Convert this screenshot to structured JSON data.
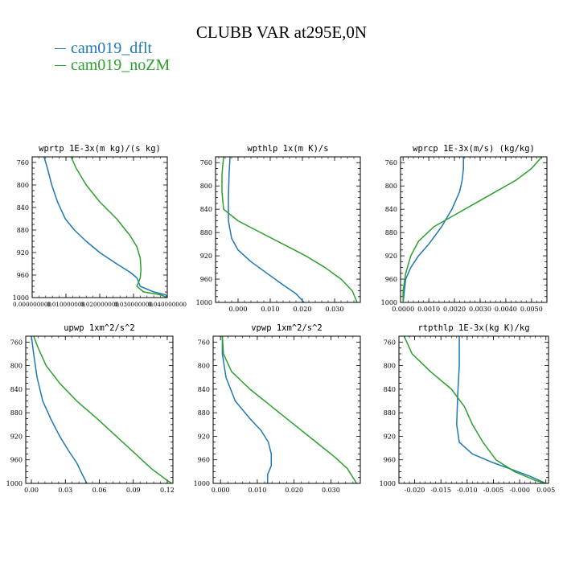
{
  "page": {
    "title": "CLUBB VAR at295E,0N",
    "legend": [
      {
        "label": "cam019_dflt",
        "color": "#1f77b4"
      },
      {
        "label": "cam019_noZM",
        "color": "#2ca02c"
      }
    ]
  },
  "chart_data": [
    {
      "type": "line",
      "title": "wprtp  1E-3x(m kg)/(s kg)",
      "xlim": [
        0.0,
        0.04
      ],
      "ylim": [
        1000,
        750
      ],
      "xticks": [
        0.0,
        0.01,
        0.02,
        0.03,
        0.04
      ],
      "xtick_labels": [
        "0.000000000",
        "0.010000000",
        "0.020000000",
        "0.030000000",
        "0.040000000"
      ],
      "yticks": [
        760,
        800,
        840,
        880,
        920,
        960,
        1000
      ],
      "series": [
        {
          "name": "cam019_dflt",
          "points": [
            [
              0.0035,
              750
            ],
            [
              0.0045,
              770
            ],
            [
              0.0058,
              800
            ],
            [
              0.0075,
              830
            ],
            [
              0.0098,
              860
            ],
            [
              0.0125,
              880
            ],
            [
              0.016,
              900
            ],
            [
              0.02,
              920
            ],
            [
              0.025,
              940
            ],
            [
              0.029,
              955
            ],
            [
              0.031,
              965
            ],
            [
              0.032,
              980
            ],
            [
              0.036,
              990
            ],
            [
              0.0395,
              995
            ],
            [
              0.04,
              1000
            ]
          ]
        },
        {
          "name": "cam019_noZM",
          "points": [
            [
              0.0115,
              750
            ],
            [
              0.013,
              770
            ],
            [
              0.016,
              800
            ],
            [
              0.02,
              830
            ],
            [
              0.025,
              860
            ],
            [
              0.029,
              890
            ],
            [
              0.031,
              910
            ],
            [
              0.032,
              930
            ],
            [
              0.0322,
              950
            ],
            [
              0.032,
              965
            ],
            [
              0.031,
              980
            ],
            [
              0.033,
              990
            ],
            [
              0.038,
              995
            ],
            [
              0.04,
              1000
            ]
          ]
        }
      ]
    },
    {
      "type": "line",
      "title": "wpthlp  1x(m K)/s",
      "xlim": [
        -0.007,
        0.038
      ],
      "ylim": [
        1000,
        750
      ],
      "xticks": [
        0.0,
        0.01,
        0.02,
        0.03
      ],
      "xtick_labels": [
        "0.000",
        "0.010",
        "0.020",
        "0.030"
      ],
      "yticks": [
        760,
        800,
        840,
        880,
        920,
        960,
        1000
      ],
      "series": [
        {
          "name": "cam019_dflt",
          "points": [
            [
              -0.0025,
              750
            ],
            [
              -0.0028,
              780
            ],
            [
              -0.003,
              820
            ],
            [
              -0.003,
              860
            ],
            [
              -0.002,
              890
            ],
            [
              0.0,
              910
            ],
            [
              0.004,
              930
            ],
            [
              0.009,
              950
            ],
            [
              0.014,
              970
            ],
            [
              0.018,
              985
            ],
            [
              0.0205,
              1000
            ]
          ]
        },
        {
          "name": "cam019_noZM",
          "points": [
            [
              -0.0045,
              750
            ],
            [
              -0.005,
              780
            ],
            [
              -0.005,
              810
            ],
            [
              -0.0045,
              840
            ],
            [
              0.0,
              860
            ],
            [
              0.007,
              880
            ],
            [
              0.014,
              900
            ],
            [
              0.021,
              920
            ],
            [
              0.027,
              940
            ],
            [
              0.032,
              960
            ],
            [
              0.0355,
              980
            ],
            [
              0.037,
              1000
            ]
          ]
        }
      ]
    },
    {
      "type": "line",
      "title": "wprcp  1E-3x(m/s) (kg/kg)",
      "xlim": [
        -0.0001,
        0.0056
      ],
      "ylim": [
        1000,
        750
      ],
      "xticks": [
        0.0,
        0.001,
        0.002,
        0.003,
        0.004,
        0.005
      ],
      "xtick_labels": [
        "0.0000",
        "0.0010",
        "0.0020",
        "0.0030",
        "0.0040",
        "0.0050"
      ],
      "yticks": [
        760,
        800,
        840,
        880,
        920,
        960,
        1000
      ],
      "series": [
        {
          "name": "cam019_dflt",
          "points": [
            [
              0.00235,
              750
            ],
            [
              0.00235,
              770
            ],
            [
              0.0023,
              790
            ],
            [
              0.0022,
              810
            ],
            [
              0.0019,
              840
            ],
            [
              0.0015,
              870
            ],
            [
              0.001,
              900
            ],
            [
              0.0006,
              920
            ],
            [
              0.0003,
              940
            ],
            [
              0.0001,
              960
            ],
            [
              5e-05,
              980
            ],
            [
              0.0,
              1000
            ]
          ]
        },
        {
          "name": "cam019_noZM",
          "points": [
            [
              0.0054,
              750
            ],
            [
              0.005,
              770
            ],
            [
              0.0044,
              790
            ],
            [
              0.0036,
              810
            ],
            [
              0.0028,
              830
            ],
            [
              0.002,
              850
            ],
            [
              0.0012,
              870
            ],
            [
              0.0006,
              895
            ],
            [
              0.0003,
              920
            ],
            [
              0.0001,
              950
            ],
            [
              0.0,
              980
            ],
            [
              0.0,
              1000
            ]
          ]
        }
      ]
    },
    {
      "type": "line",
      "title": "upwp  1xm^2/s^2",
      "xlim": [
        -0.005,
        0.125
      ],
      "ylim": [
        1000,
        750
      ],
      "xticks": [
        0.0,
        0.03,
        0.06,
        0.09,
        0.12
      ],
      "xtick_labels": [
        "0.00",
        "0.03",
        "0.06",
        "0.09",
        "0.12"
      ],
      "yticks": [
        760,
        800,
        840,
        880,
        920,
        960,
        1000
      ],
      "series": [
        {
          "name": "cam019_dflt",
          "points": [
            [
              0.0,
              750
            ],
            [
              0.002,
              780
            ],
            [
              0.005,
              820
            ],
            [
              0.01,
              860
            ],
            [
              0.017,
              890
            ],
            [
              0.025,
              920
            ],
            [
              0.033,
              945
            ],
            [
              0.04,
              965
            ],
            [
              0.045,
              985
            ],
            [
              0.049,
              1000
            ]
          ]
        },
        {
          "name": "cam019_noZM",
          "points": [
            [
              0.002,
              750
            ],
            [
              0.006,
              770
            ],
            [
              0.013,
              800
            ],
            [
              0.025,
              830
            ],
            [
              0.04,
              860
            ],
            [
              0.058,
              890
            ],
            [
              0.075,
              920
            ],
            [
              0.092,
              950
            ],
            [
              0.106,
              975
            ],
            [
              0.12,
              995
            ],
            [
              0.124,
              1000
            ]
          ]
        }
      ]
    },
    {
      "type": "line",
      "title": "vpwp  1xm^2/s^2",
      "xlim": [
        -0.002,
        0.038
      ],
      "ylim": [
        1000,
        750
      ],
      "xticks": [
        0.0,
        0.01,
        0.02,
        0.03
      ],
      "xtick_labels": [
        "0.000",
        "0.010",
        "0.020",
        "0.030"
      ],
      "yticks": [
        760,
        800,
        840,
        880,
        920,
        960,
        1000
      ],
      "series": [
        {
          "name": "cam019_dflt",
          "points": [
            [
              0.0005,
              750
            ],
            [
              0.0005,
              780
            ],
            [
              0.0015,
              820
            ],
            [
              0.004,
              860
            ],
            [
              0.008,
              890
            ],
            [
              0.011,
              910
            ],
            [
              0.013,
              930
            ],
            [
              0.0138,
              950
            ],
            [
              0.0138,
              970
            ],
            [
              0.0128,
              985
            ],
            [
              0.0128,
              1000
            ]
          ]
        },
        {
          "name": "cam019_noZM",
          "points": [
            [
              0.0005,
              750
            ],
            [
              0.0008,
              780
            ],
            [
              0.003,
              810
            ],
            [
              0.008,
              840
            ],
            [
              0.014,
              870
            ],
            [
              0.02,
              900
            ],
            [
              0.026,
              930
            ],
            [
              0.031,
              955
            ],
            [
              0.0345,
              975
            ],
            [
              0.037,
              1000
            ]
          ]
        }
      ]
    },
    {
      "type": "line",
      "title": "rtpthlp  1E-3x(kg K)/kg",
      "xlim": [
        -0.023,
        0.0055
      ],
      "ylim": [
        1000,
        750
      ],
      "xticks": [
        -0.02,
        -0.015,
        -0.01,
        -0.005,
        0.0,
        0.005
      ],
      "xtick_labels": [
        "-0.020",
        "-0.015",
        "-0.010",
        "-0.005",
        "-0.000",
        "0.005"
      ],
      "yticks": [
        760,
        800,
        840,
        880,
        920,
        960,
        1000
      ],
      "series": [
        {
          "name": "cam019_dflt",
          "points": [
            [
              -0.0115,
              750
            ],
            [
              -0.0115,
              800
            ],
            [
              -0.0118,
              850
            ],
            [
              -0.012,
              900
            ],
            [
              -0.0115,
              930
            ],
            [
              -0.009,
              950
            ],
            [
              -0.005,
              965
            ],
            [
              -0.001,
              978
            ],
            [
              0.002,
              988
            ],
            [
              0.005,
              1000
            ]
          ]
        },
        {
          "name": "cam019_noZM",
          "points": [
            [
              -0.022,
              750
            ],
            [
              -0.0205,
              780
            ],
            [
              -0.017,
              810
            ],
            [
              -0.013,
              840
            ],
            [
              -0.0105,
              870
            ],
            [
              -0.009,
              900
            ],
            [
              -0.007,
              930
            ],
            [
              -0.0045,
              960
            ],
            [
              -0.001,
              980
            ],
            [
              0.003,
              995
            ],
            [
              0.005,
              1000
            ]
          ]
        }
      ]
    }
  ]
}
